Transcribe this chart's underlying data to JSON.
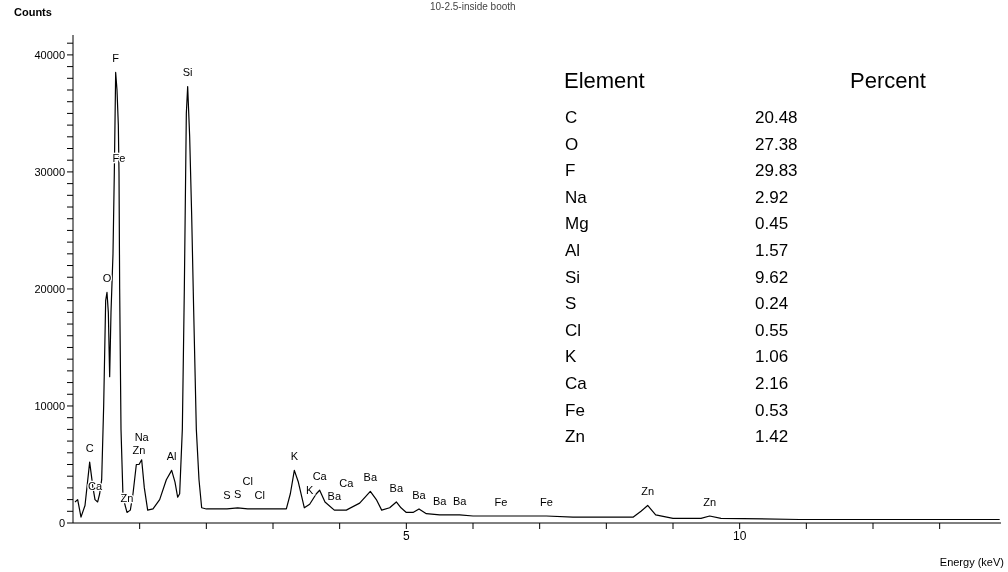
{
  "chart_data": [
    {
      "type": "line",
      "xlabel": "Energy (keV)",
      "ylabel": "Counts",
      "xlim": [
        0,
        13.92
      ],
      "ylim": [
        0,
        41700
      ],
      "color": "#000000",
      "line_style": "solid",
      "xticks": [
        {
          "value": 1,
          "label": null
        },
        {
          "value": 2,
          "label": null
        },
        {
          "value": 3,
          "label": null
        },
        {
          "value": 4,
          "label": null
        },
        5,
        {
          "value": 6,
          "label": null
        },
        {
          "value": 7,
          "label": null
        },
        {
          "value": 8,
          "label": null
        },
        {
          "value": 9,
          "label": null
        },
        10,
        {
          "value": 11,
          "label": null
        },
        {
          "value": 12,
          "label": null
        },
        {
          "value": 13,
          "label": null
        }
      ],
      "yticks": [
        0,
        {
          "value": 1000,
          "label": null
        },
        {
          "value": 2000,
          "label": null
        },
        {
          "value": 3000,
          "label": null
        },
        {
          "value": 4000,
          "label": null
        },
        {
          "value": 5000,
          "label": null
        },
        {
          "value": 6000,
          "label": null
        },
        {
          "value": 7000,
          "label": null
        },
        {
          "value": 8000,
          "label": null
        },
        {
          "value": 9000,
          "label": null
        },
        10000,
        {
          "value": 11000,
          "label": null
        },
        {
          "value": 12000,
          "label": null
        },
        {
          "value": 13000,
          "label": null
        },
        {
          "value": 14000,
          "label": null
        },
        {
          "value": 15000,
          "label": null
        },
        {
          "value": 16000,
          "label": null
        },
        {
          "value": 17000,
          "label": null
        },
        {
          "value": 18000,
          "label": null
        },
        {
          "value": 19000,
          "label": null
        },
        20000,
        {
          "value": 21000,
          "label": null
        },
        {
          "value": 22000,
          "label": null
        },
        {
          "value": 23000,
          "label": null
        },
        {
          "value": 24000,
          "label": null
        },
        {
          "value": 25000,
          "label": null
        },
        {
          "value": 26000,
          "label": null
        },
        {
          "value": 27000,
          "label": null
        },
        {
          "value": 28000,
          "label": null
        },
        {
          "value": 29000,
          "label": null
        },
        30000,
        {
          "value": 31000,
          "label": null
        },
        {
          "value": 32000,
          "label": null
        },
        {
          "value": 33000,
          "label": null
        },
        {
          "value": 34000,
          "label": null
        },
        {
          "value": 35000,
          "label": null
        },
        {
          "value": 36000,
          "label": null
        },
        {
          "value": 37000,
          "label": null
        },
        {
          "value": 38000,
          "label": null
        },
        {
          "value": 39000,
          "label": null
        },
        40000,
        {
          "value": 41000,
          "label": null
        }
      ],
      "x": [
        0.03,
        0.07,
        0.12,
        0.18,
        0.25,
        0.3,
        0.33,
        0.37,
        0.4,
        0.43,
        0.46,
        0.49,
        0.51,
        0.53,
        0.55,
        0.57,
        0.6,
        0.62,
        0.64,
        0.66,
        0.68,
        0.69,
        0.7,
        0.72,
        0.75,
        0.81,
        0.86,
        0.9,
        0.95,
        0.99,
        1.03,
        1.07,
        1.12,
        1.2,
        1.3,
        1.4,
        1.48,
        1.53,
        1.57,
        1.6,
        1.64,
        1.67,
        1.7,
        1.72,
        1.75,
        1.78,
        1.81,
        1.85,
        1.89,
        1.93,
        2.0,
        2.31,
        2.47,
        2.62,
        2.8,
        3.0,
        3.2,
        3.26,
        3.32,
        3.38,
        3.47,
        3.55,
        3.65,
        3.7,
        3.78,
        3.92,
        4.1,
        4.3,
        4.46,
        4.55,
        4.63,
        4.75,
        4.85,
        4.92,
        5.0,
        5.1,
        5.19,
        5.3,
        5.5,
        5.8,
        6.0,
        6.42,
        7.1,
        7.5,
        7.92,
        8.4,
        8.52,
        8.62,
        8.74,
        9.0,
        9.42,
        9.55,
        9.72,
        10.9,
        12.0,
        13.9
      ],
      "values": [
        1800,
        2000,
        500,
        1500,
        5200,
        3000,
        2000,
        1800,
        2500,
        3700,
        10000,
        19000,
        19700,
        18000,
        12500,
        18000,
        23000,
        30000,
        38500,
        37000,
        34000,
        30000,
        20000,
        8000,
        2200,
        900,
        1100,
        2500,
        5000,
        5000,
        5400,
        3000,
        1100,
        1200,
        2000,
        3700,
        4500,
        3500,
        2200,
        2500,
        8000,
        20000,
        35000,
        37300,
        33000,
        26300,
        18200,
        8000,
        3700,
        1300,
        1200,
        1200,
        1300,
        1200,
        1200,
        1200,
        1200,
        2500,
        4500,
        3500,
        1300,
        1600,
        2500,
        2800,
        1800,
        1100,
        1100,
        1700,
        2700,
        2000,
        1100,
        1300,
        1800,
        1300,
        900,
        900,
        1200,
        800,
        700,
        700,
        600,
        600,
        600,
        500,
        500,
        500,
        1000,
        1500,
        700,
        400,
        400,
        600,
        400,
        300,
        300,
        300
      ],
      "annotations": [
        "10-2.5-inside booth",
        {
          "text": "C",
          "x": 0.25,
          "y": 5200
        },
        {
          "text": "Ca",
          "x": 0.33,
          "y": 2000
        },
        {
          "text": "O",
          "x": 0.51,
          "y": 19700
        },
        {
          "text": "F",
          "x": 0.64,
          "y": 38500
        },
        {
          "text": "Fe",
          "x": 0.69,
          "y": 30000
        },
        {
          "text": "Zn",
          "x": 0.81,
          "y": 900
        },
        {
          "text": "Zn",
          "x": 0.99,
          "y": 5000
        },
        {
          "text": "Na",
          "x": 1.03,
          "y": 5400
        },
        {
          "text": "Al",
          "x": 1.48,
          "y": 4500
        },
        {
          "text": "Si",
          "x": 1.72,
          "y": 37300
        },
        {
          "text": "S",
          "x": 2.31,
          "y": 1200
        },
        {
          "text": "S",
          "x": 2.47,
          "y": 1300
        },
        {
          "text": "Cl",
          "x": 2.62,
          "y": 1200
        },
        {
          "text": "Cl",
          "x": 2.8,
          "y": 1200
        },
        {
          "text": "K",
          "x": 3.32,
          "y": 4500
        },
        {
          "text": "K",
          "x": 3.55,
          "y": 1600
        },
        {
          "text": "Ca",
          "x": 3.7,
          "y": 2800
        },
        {
          "text": "Ba",
          "x": 3.92,
          "y": 1100
        },
        {
          "text": "Ca",
          "x": 4.1,
          "y": 1100
        },
        {
          "text": "Ba",
          "x": 4.46,
          "y": 2700
        },
        {
          "text": "Ba",
          "x": 4.85,
          "y": 1800
        },
        {
          "text": "Ba",
          "x": 5.19,
          "y": 1200
        },
        {
          "text": "Ba",
          "x": 5.5,
          "y": 700
        },
        {
          "text": "Ba",
          "x": 5.8,
          "y": 700
        },
        {
          "text": "Fe",
          "x": 6.42,
          "y": 600
        },
        {
          "text": "Fe",
          "x": 7.1,
          "y": 600
        },
        {
          "text": "Zn",
          "x": 8.62,
          "y": 1500
        },
        {
          "text": "Zn",
          "x": 9.55,
          "y": 600
        }
      ]
    },
    {
      "type": "other",
      "annotations": [
        "Element",
        "Percent"
      ],
      "data_labels": true,
      "categories": [
        "C",
        "O",
        "F",
        "Na",
        "Mg",
        "Al",
        "Si",
        "S",
        "Cl",
        "K",
        "Ca",
        "Fe",
        "Zn"
      ],
      "values": [
        20.48,
        27.38,
        29.83,
        2.92,
        0.45,
        1.57,
        9.62,
        0.24,
        0.55,
        1.06,
        2.16,
        0.53,
        1.42
      ]
    }
  ]
}
